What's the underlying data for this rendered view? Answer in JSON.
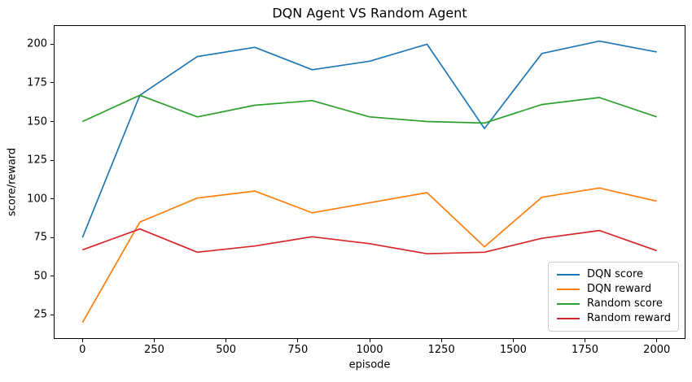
{
  "chart_data": {
    "type": "line",
    "title": "DQN Agent VS Random Agent",
    "xlabel": "episode",
    "ylabel": "score/reward",
    "x": [
      0,
      200,
      400,
      600,
      800,
      1000,
      1200,
      1400,
      1600,
      1800,
      2000
    ],
    "series": [
      {
        "name": "DQN score",
        "color": "#1f77b4",
        "values": [
          75,
          167,
          192,
          198,
          183.5,
          189,
          200,
          145.5,
          194,
          202,
          195
        ]
      },
      {
        "name": "DQN reward",
        "color": "#ff7f0e",
        "values": [
          20,
          85,
          100.5,
          105,
          91,
          97.5,
          104,
          69,
          101,
          107,
          98.5
        ]
      },
      {
        "name": "Random score",
        "color": "#2ca02c",
        "values": [
          150,
          167,
          153,
          160.5,
          163.5,
          153,
          150,
          149,
          161,
          165.5,
          153
        ]
      },
      {
        "name": "Random reward",
        "color": "#d62728",
        "values": [
          67,
          80.5,
          65.5,
          69.5,
          75.5,
          71,
          64.5,
          65.5,
          74.5,
          79.5,
          66.5
        ]
      }
    ],
    "xticks": [
      0,
      250,
      500,
      750,
      1000,
      1250,
      1500,
      1750,
      2000
    ],
    "yticks": [
      25,
      50,
      75,
      100,
      125,
      150,
      175,
      200
    ],
    "xlim": [
      -100,
      2100
    ],
    "ylim": [
      9.4,
      212.3
    ],
    "legend_position": "lower right",
    "grid": false,
    "background": "#ffffff",
    "spine_color": "#000000"
  }
}
